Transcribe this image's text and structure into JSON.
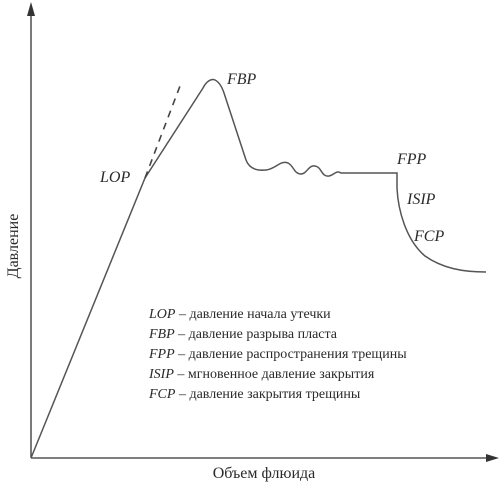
{
  "axes": {
    "x_label": "Объем флюида",
    "y_label": "Давление"
  },
  "points": {
    "lop": "LOP",
    "fbp": "FBP",
    "fpp": "FPP",
    "isip": "ISIP",
    "fcp": "FCP"
  },
  "legend": [
    {
      "abbr": "LOP",
      "text": " – давление начала утечки"
    },
    {
      "abbr": "FBP",
      "text": " – давление разрыва пласта"
    },
    {
      "abbr": "FPP",
      "text": " – давление распространения трещины"
    },
    {
      "abbr": "ISIP",
      "text": " – мгновенное давление закрытия"
    },
    {
      "abbr": "FCP",
      "text": " – давление закрытия трещины"
    }
  ],
  "colors": {
    "line": "#333333",
    "text": "#2a2a2a"
  }
}
